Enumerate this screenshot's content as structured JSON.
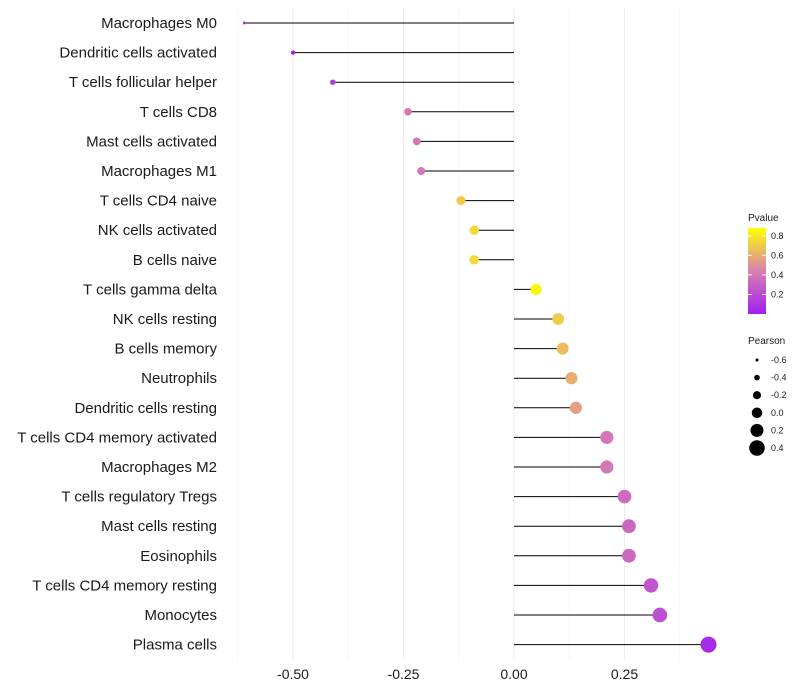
{
  "chart_data": {
    "type": "lollipop",
    "title": "",
    "xlabel": "",
    "ylabel": "",
    "xlim": [
      -0.63,
      0.46
    ],
    "xticks": [
      -0.5,
      -0.25,
      0.0,
      0.25
    ],
    "xtick_labels": [
      "-0.50",
      "-0.25",
      "0.00",
      "0.25"
    ],
    "grid": true,
    "categories": [
      "Macrophages M0",
      "Dendritic cells activated",
      "T cells follicular helper",
      "T cells CD8",
      "Mast cells activated",
      "Macrophages M1",
      "T cells CD4 naive",
      "NK cells activated",
      "B cells naive",
      "T cells gamma delta",
      "NK cells resting",
      "B cells memory",
      "Neutrophils",
      "Dendritic cells resting",
      "T cells CD4 memory activated",
      "Macrophages M2",
      "T cells regulatory  Tregs ",
      "Mast cells resting",
      "Eosinophils",
      "T cells CD4 memory resting",
      "Monocytes",
      "Plasma cells"
    ],
    "pearson": [
      -0.61,
      -0.5,
      -0.41,
      -0.24,
      -0.22,
      -0.21,
      -0.12,
      -0.09,
      -0.09,
      0.05,
      0.1,
      0.11,
      0.13,
      0.14,
      0.21,
      0.21,
      0.25,
      0.26,
      0.26,
      0.31,
      0.33,
      0.44
    ],
    "pvalue": [
      0.05,
      0.03,
      0.12,
      0.4,
      0.4,
      0.4,
      0.7,
      0.75,
      0.75,
      0.85,
      0.7,
      0.65,
      0.6,
      0.55,
      0.4,
      0.4,
      0.35,
      0.33,
      0.33,
      0.25,
      0.22,
      0.05
    ],
    "legend_pvalue": {
      "title": "Pvalue",
      "ticks": [
        0.8,
        0.6,
        0.4,
        0.2
      ],
      "tick_labels": [
        "0.8",
        "0.6",
        "0.4",
        "0.2"
      ],
      "range": [
        0.0,
        0.88
      ],
      "color_low": "#a020f0",
      "color_mid": "#d880b0",
      "color_high": "#ffff00"
    },
    "legend_pearson": {
      "title": "Pearson",
      "values": [
        -0.6,
        -0.4,
        -0.2,
        0.0,
        0.2,
        0.4
      ],
      "labels": [
        "-0.6",
        "-0.4",
        "-0.2",
        "0.0",
        "0.2",
        "0.4"
      ]
    },
    "legend_position": "right"
  }
}
